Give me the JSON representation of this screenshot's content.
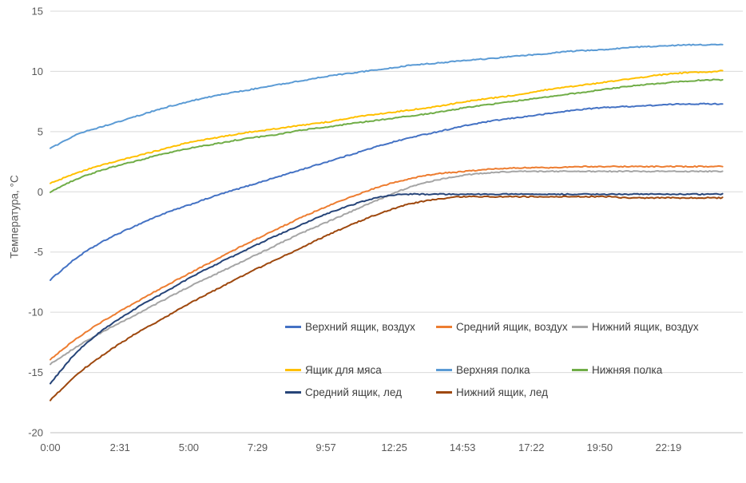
{
  "chart_data": {
    "type": "line",
    "title": "",
    "xlabel": "",
    "ylabel": "Температура, °C",
    "ylim": [
      -20,
      15
    ],
    "y_ticks": [
      15,
      10,
      5,
      0,
      -5,
      -10,
      -15,
      -20
    ],
    "x_ticks": [
      {
        "label": "0:00",
        "minutes": 0
      },
      {
        "label": "2:31",
        "minutes": 151
      },
      {
        "label": "5:00",
        "minutes": 300
      },
      {
        "label": "7:29",
        "minutes": 449
      },
      {
        "label": "9:57",
        "minutes": 597
      },
      {
        "label": "12:25",
        "minutes": 745
      },
      {
        "label": "14:53",
        "minutes": 893
      },
      {
        "label": "17:22",
        "minutes": 1042
      },
      {
        "label": "19:50",
        "minutes": 1190
      },
      {
        "label": "22:19",
        "minutes": 1339
      }
    ],
    "x_range_minutes": [
      0,
      1500
    ],
    "grid": "horizontal",
    "gridline_color": "#D9D9D9",
    "axis_line_color": "#BFBFBF",
    "legend_position": "inside-bottom-right",
    "x_minutes": [
      0,
      60,
      120,
      180,
      240,
      300,
      360,
      420,
      480,
      540,
      600,
      660,
      720,
      780,
      840,
      900,
      960,
      1020,
      1080,
      1140,
      1200,
      1260,
      1320,
      1380,
      1440,
      1456
    ],
    "series": [
      {
        "name": "Верхний ящик, воздух",
        "color": "#4472C4",
        "values": [
          -7.3,
          -5.4,
          -4.0,
          -2.9,
          -1.9,
          -1.1,
          -0.3,
          0.4,
          1.1,
          1.8,
          2.5,
          3.2,
          3.9,
          4.5,
          5.0,
          5.5,
          5.9,
          6.2,
          6.5,
          6.8,
          7.0,
          7.1,
          7.2,
          7.3,
          7.3,
          7.3
        ]
      },
      {
        "name": "Средний ящик, воздух",
        "color": "#ED7D31",
        "values": [
          -13.9,
          -12.1,
          -10.6,
          -9.3,
          -8.0,
          -6.8,
          -5.6,
          -4.4,
          -3.3,
          -2.2,
          -1.2,
          -0.3,
          0.5,
          1.1,
          1.5,
          1.7,
          1.9,
          2.0,
          2.0,
          2.1,
          2.1,
          2.1,
          2.1,
          2.1,
          2.1,
          2.1
        ]
      },
      {
        "name": "Нижний ящик, воздух",
        "color": "#A5A5A5",
        "values": [
          -14.3,
          -12.8,
          -11.5,
          -10.3,
          -9.1,
          -7.9,
          -6.8,
          -5.7,
          -4.6,
          -3.5,
          -2.5,
          -1.5,
          -0.5,
          0.4,
          1.0,
          1.4,
          1.6,
          1.7,
          1.7,
          1.7,
          1.7,
          1.7,
          1.7,
          1.7,
          1.7,
          1.7
        ]
      },
      {
        "name": "Ящик для мяса",
        "color": "#FFC000",
        "values": [
          0.7,
          1.6,
          2.3,
          2.9,
          3.5,
          4.1,
          4.5,
          4.9,
          5.2,
          5.5,
          5.8,
          6.2,
          6.5,
          6.8,
          7.1,
          7.5,
          7.8,
          8.1,
          8.5,
          8.8,
          9.1,
          9.4,
          9.7,
          9.9,
          10.0,
          10.1
        ]
      },
      {
        "name": "Верхняя полка",
        "color": "#5B9BD5",
        "values": [
          3.6,
          4.8,
          5.5,
          6.2,
          6.9,
          7.5,
          8.0,
          8.4,
          8.8,
          9.2,
          9.6,
          9.9,
          10.2,
          10.5,
          10.7,
          10.9,
          11.1,
          11.3,
          11.5,
          11.7,
          11.8,
          12.0,
          12.1,
          12.2,
          12.2,
          12.2
        ]
      },
      {
        "name": "Нижняя полка",
        "color": "#70AD47",
        "values": [
          0.0,
          1.1,
          1.9,
          2.5,
          3.1,
          3.6,
          4.0,
          4.4,
          4.7,
          5.1,
          5.4,
          5.7,
          6.0,
          6.3,
          6.6,
          7.0,
          7.3,
          7.6,
          7.9,
          8.2,
          8.5,
          8.8,
          9.0,
          9.2,
          9.3,
          9.3
        ]
      },
      {
        "name": "Средний ящик, лед",
        "color": "#264478",
        "values": [
          -15.9,
          -13.2,
          -11.3,
          -9.8,
          -8.5,
          -7.2,
          -6.0,
          -4.9,
          -3.8,
          -2.8,
          -1.8,
          -1.0,
          -0.4,
          -0.2,
          -0.2,
          -0.2,
          -0.2,
          -0.2,
          -0.2,
          -0.2,
          -0.2,
          -0.2,
          -0.2,
          -0.2,
          -0.2,
          -0.2
        ]
      },
      {
        "name": "Нижний ящик, лед",
        "color": "#9E480E",
        "values": [
          -17.3,
          -15.1,
          -13.4,
          -11.9,
          -10.6,
          -9.3,
          -8.1,
          -6.9,
          -5.8,
          -4.7,
          -3.6,
          -2.6,
          -1.7,
          -1.0,
          -0.6,
          -0.4,
          -0.4,
          -0.4,
          -0.4,
          -0.4,
          -0.4,
          -0.5,
          -0.5,
          -0.5,
          -0.5,
          -0.5
        ]
      }
    ]
  }
}
